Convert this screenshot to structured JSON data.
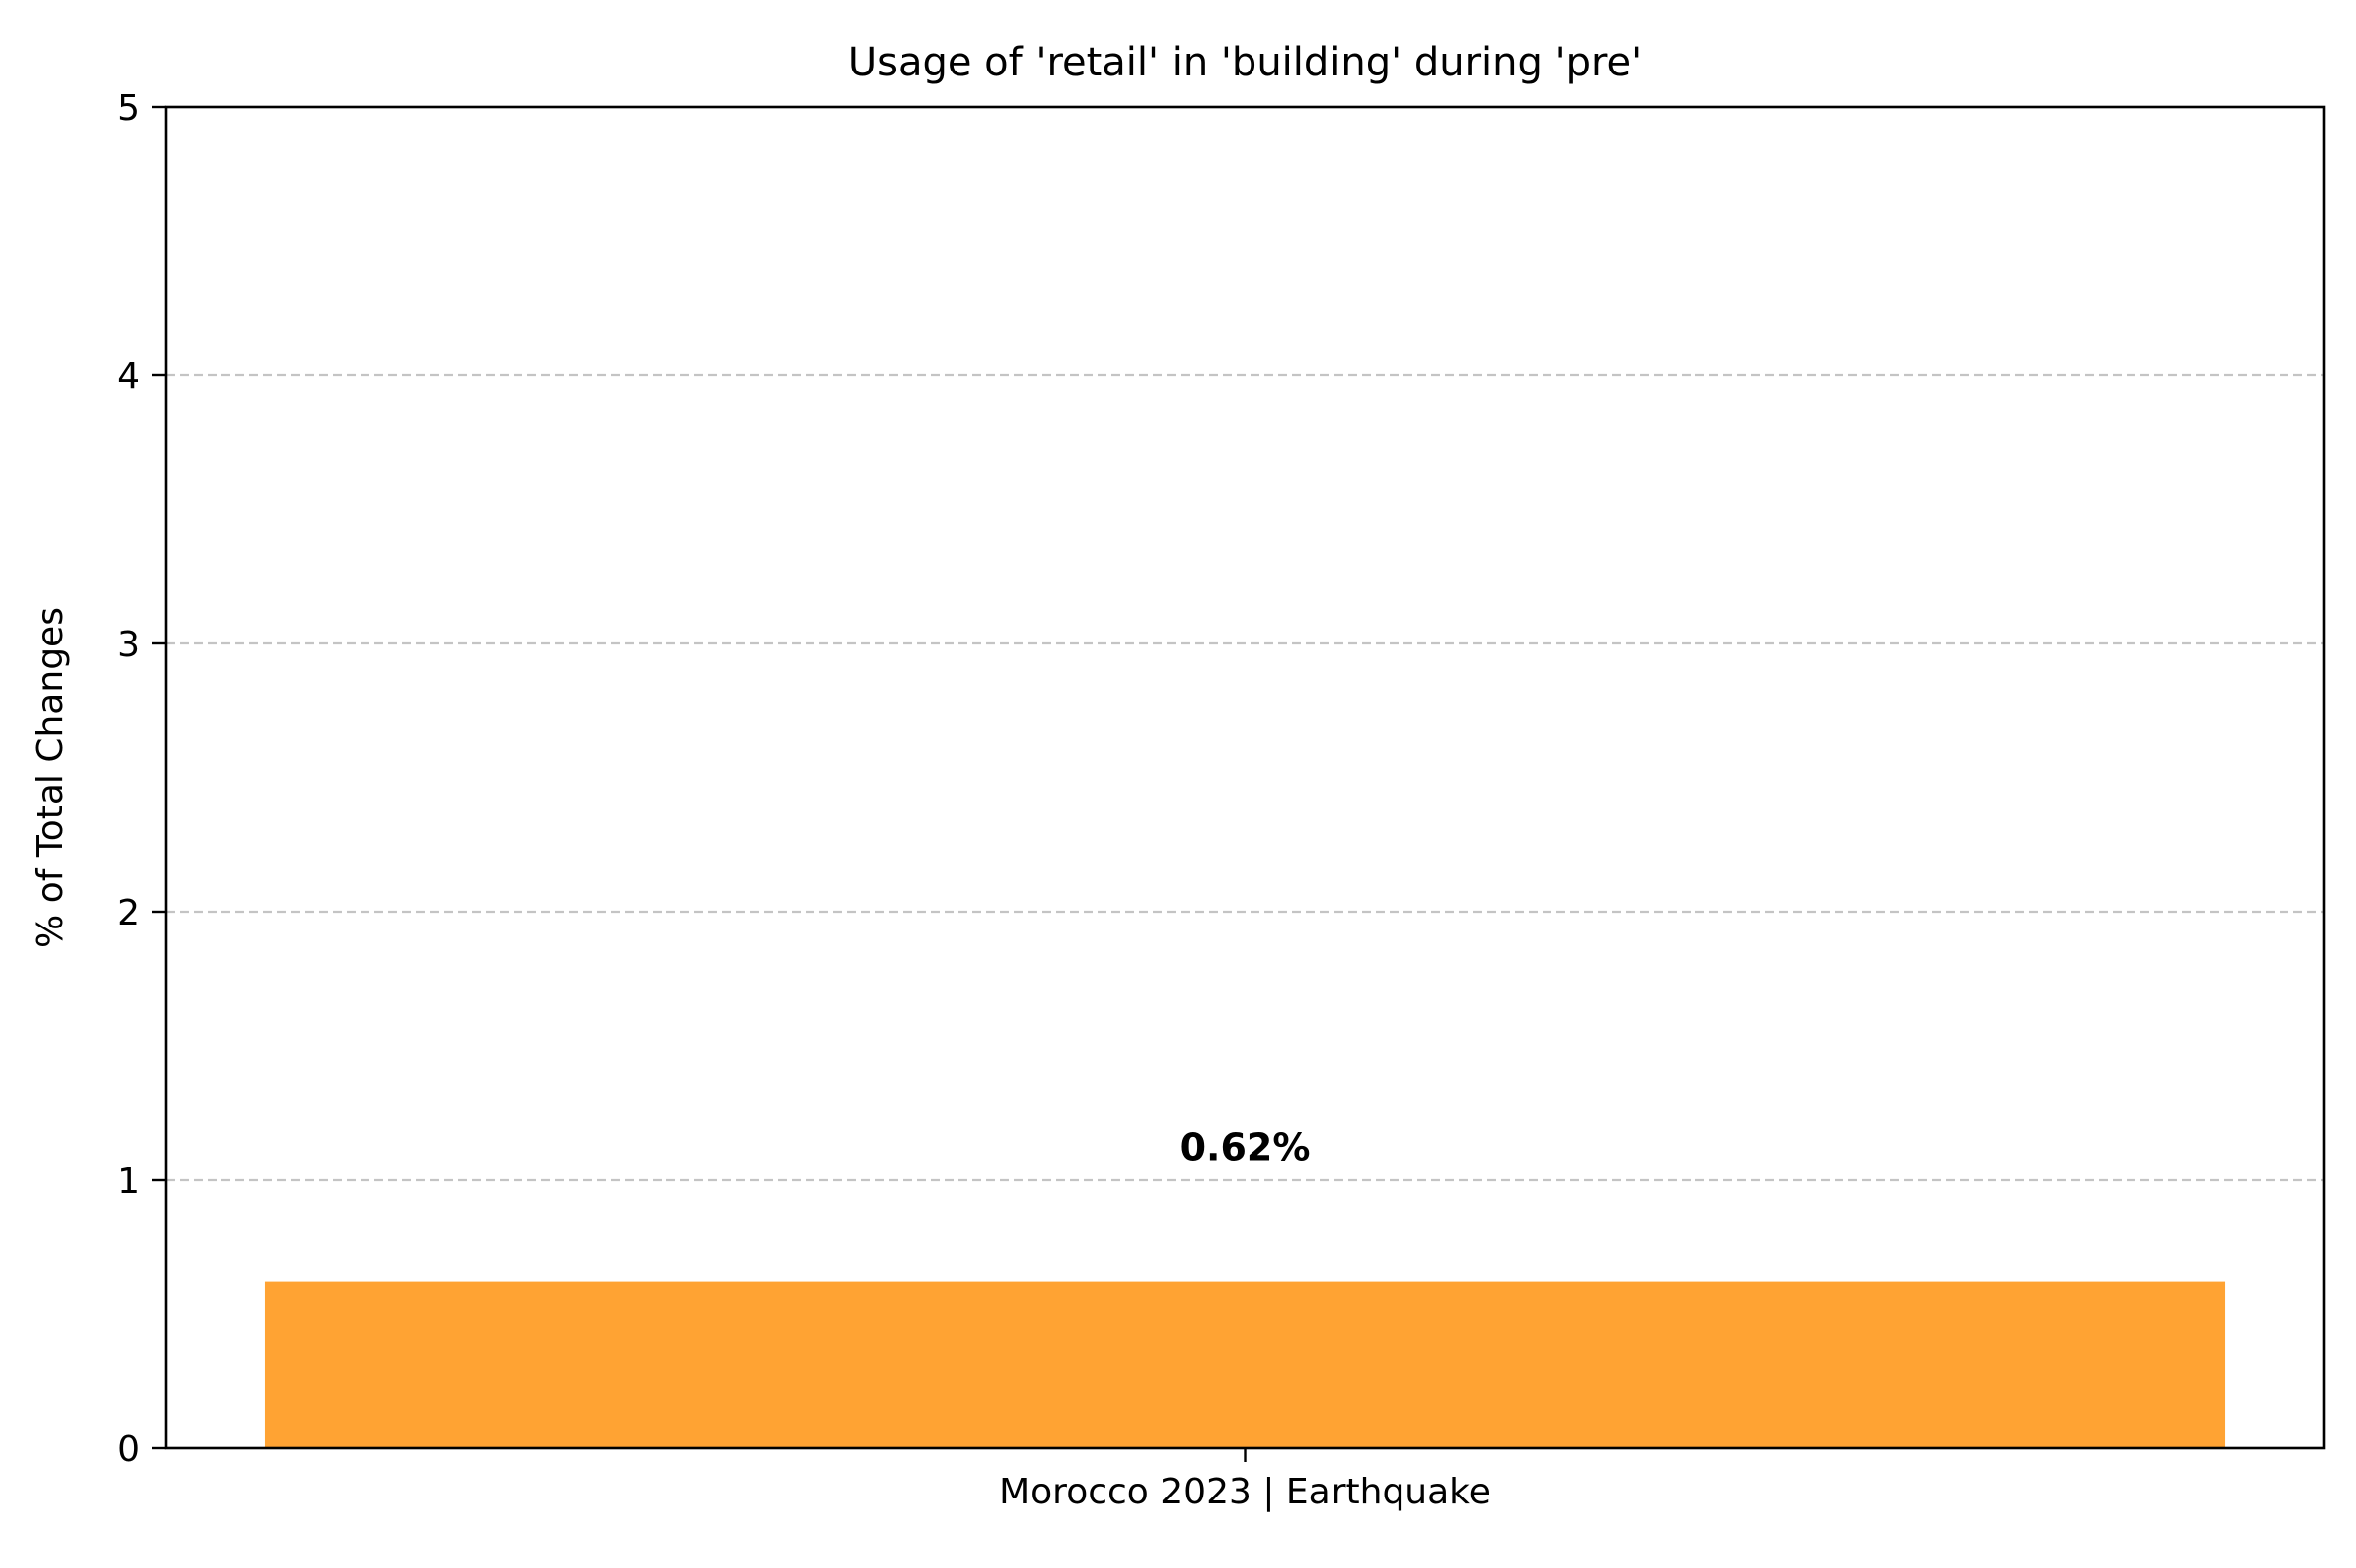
{
  "chart_data": {
    "type": "bar",
    "title": "Usage of 'retail' in 'building' during 'pre'",
    "xlabel": "",
    "ylabel": "% of Total Changes",
    "categories": [
      "Morocco 2023 | Earthquake"
    ],
    "values": [
      0.62
    ],
    "data_labels": [
      "0.62%"
    ],
    "ylim": [
      0,
      5
    ],
    "yticks": [
      0,
      1,
      2,
      3,
      4,
      5
    ],
    "ytick_labels": [
      "0",
      "1",
      "2",
      "3",
      "4",
      "5"
    ],
    "grid": {
      "axis": "y",
      "style": "dashed",
      "color": "#c4c4c4"
    },
    "bar_color": "#ffa333",
    "legend": "none"
  }
}
